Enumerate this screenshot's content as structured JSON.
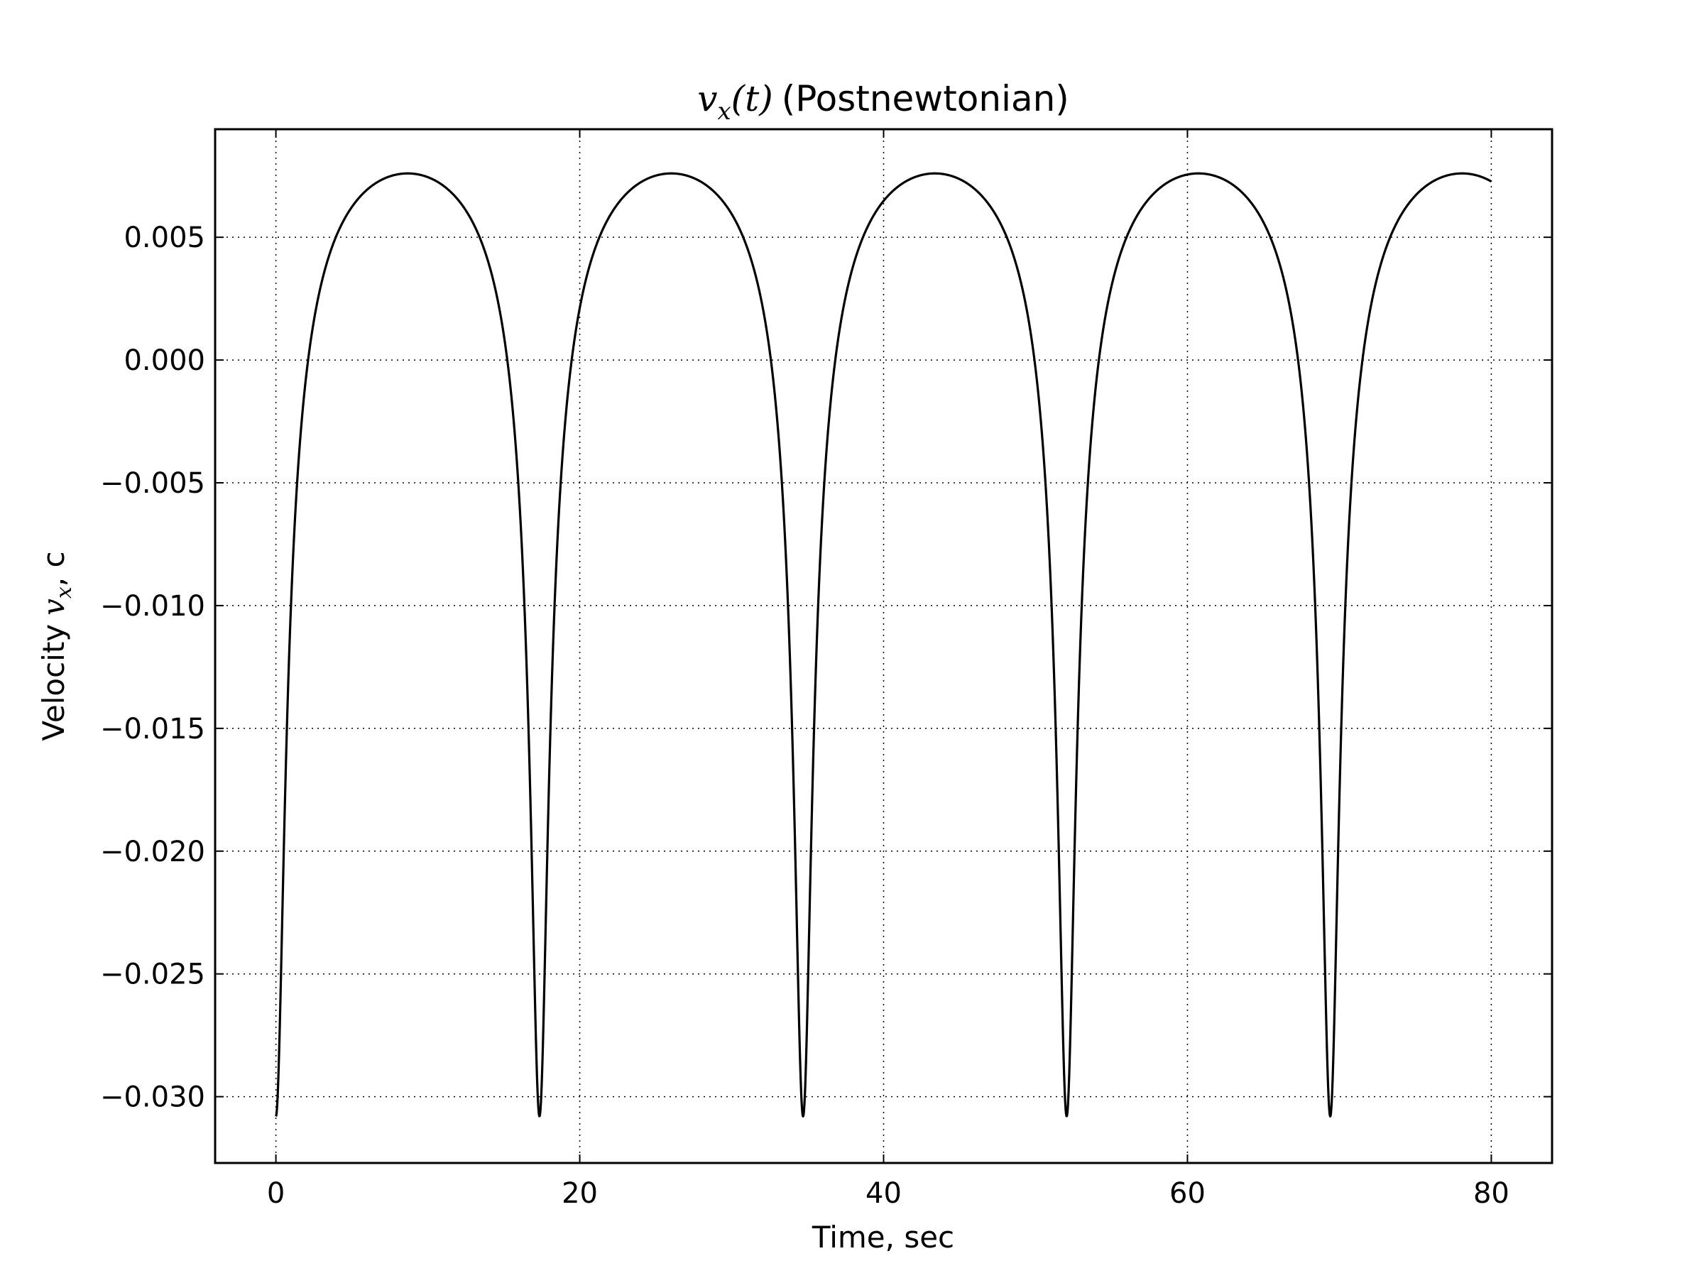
{
  "chart_data": {
    "type": "line",
    "title": {
      "math_symbol": "v",
      "math_subscript": "x",
      "math_arg": "(t)",
      "text": "(Postnewtonian)"
    },
    "xlabel": "Time, sec",
    "ylabel": {
      "prefix": "Velocity",
      "math_symbol": "v",
      "math_subscript": "x",
      "suffix": ", c"
    },
    "xlim": [
      -4,
      84
    ],
    "ylim": [
      -0.0327,
      0.0094
    ],
    "x_ticks": [
      {
        "value": 0,
        "label": "0"
      },
      {
        "value": 20,
        "label": "20"
      },
      {
        "value": 40,
        "label": "40"
      },
      {
        "value": 60,
        "label": "60"
      },
      {
        "value": 80,
        "label": "80"
      }
    ],
    "y_ticks": [
      {
        "value": 0.005,
        "label": "0.005"
      },
      {
        "value": 0.0,
        "label": "0.000"
      },
      {
        "value": -0.005,
        "label": "−0.005"
      },
      {
        "value": -0.01,
        "label": "−0.010"
      },
      {
        "value": -0.015,
        "label": "−0.015"
      },
      {
        "value": -0.02,
        "label": "−0.020"
      },
      {
        "value": -0.025,
        "label": "−0.025"
      },
      {
        "value": -0.03,
        "label": "−0.030"
      }
    ],
    "grid": true,
    "line_color": "#000000",
    "series": [
      {
        "x": [
          0,
          17.35,
          34.7,
          52.05,
          69.4
        ],
        "y": [
          -0.0308,
          -0.0308,
          -0.0308,
          -0.0308,
          -0.0308
        ]
      }
    ],
    "notes": {
      "period": 17.35,
      "max": 0.0076,
      "min": -0.0308,
      "x_end": 80,
      "y_end": 0.0069
    }
  }
}
